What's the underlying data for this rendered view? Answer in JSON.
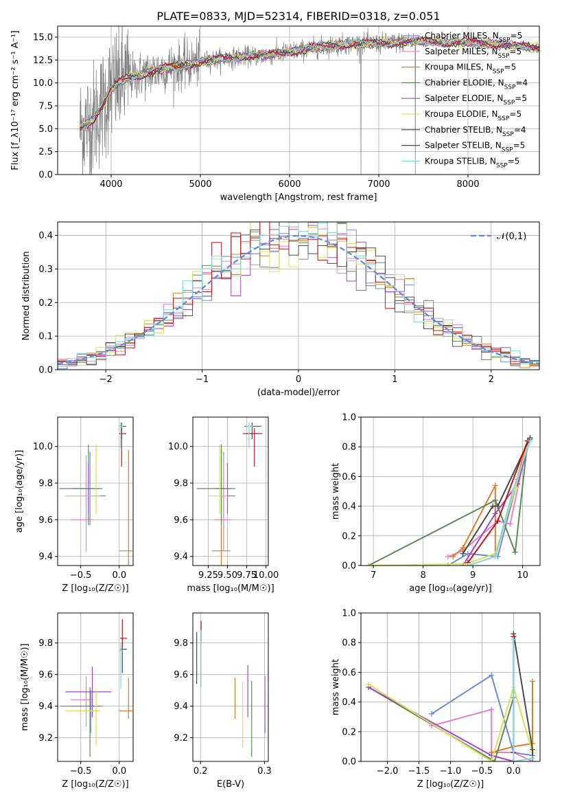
{
  "figure_title": "PLATE=0833, MJD=52314, FIBERID=0318, z=0.051",
  "colors": {
    "data": "#808080",
    "models": [
      "#6a8bdc",
      "#e87fc5",
      "#e07b28",
      "#5a8a5a",
      "#a844c2",
      "#d8e05a",
      "#4a4a4a",
      "#c0131a",
      "#7fd8e0"
    ],
    "gauss": "#6a8bdc"
  },
  "chart_data": [
    {
      "id": "spectrum",
      "type": "line",
      "xlabel": "wavelength [Angstrom, rest frame]",
      "ylabel": "Flux [f_λ10⁻¹⁷ erg cm⁻² s⁻¹ A⁻¹]",
      "xlim": [
        3400,
        8800
      ],
      "ylim": [
        0,
        16.2
      ],
      "xticks": [
        4000,
        5000,
        6000,
        7000,
        8000
      ],
      "yticks": [
        0.0,
        2.5,
        5.0,
        7.5,
        10.0,
        12.5,
        15.0
      ],
      "grid": true,
      "legend_placement": "right",
      "series": [
        {
          "name": "Chabrier MILES, N_SSP=5"
        },
        {
          "name": "Salpeter MILES, N_SSP=5"
        },
        {
          "name": "Kroupa MILES, N_SSP=5"
        },
        {
          "name": "Chabrier ELODIE, N_SSP=4"
        },
        {
          "name": "Salpeter ELODIE, N_SSP=5"
        },
        {
          "name": "Kroupa ELODIE, N_SSP=5"
        },
        {
          "name": "Chabrier STELIB, N_SSP=4"
        },
        {
          "name": "Salpeter STELIB, N_SSP=5"
        },
        {
          "name": "Kroupa STELIB, N_SSP=5"
        }
      ],
      "continuum": {
        "x": [
          3650,
          3800,
          3900,
          4000,
          4100,
          4200,
          4400,
          4600,
          4800,
          5000,
          5200,
          5500,
          5800,
          6000,
          6200,
          6400,
          6600,
          6800,
          7000,
          7200,
          7400,
          7600,
          7800,
          8000,
          8200,
          8400,
          8600,
          8800
        ],
        "y": [
          5.0,
          6.0,
          7.5,
          9.3,
          10.2,
          10.6,
          11.0,
          11.6,
          11.9,
          12.3,
          12.6,
          12.9,
          13.1,
          13.4,
          13.7,
          14.0,
          14.2,
          14.3,
          14.3,
          14.4,
          14.5,
          14.5,
          14.4,
          14.4,
          14.3,
          14.2,
          14.0,
          13.8
        ]
      }
    },
    {
      "id": "residuals",
      "type": "line",
      "xlabel": "(data-model)/error",
      "ylabel": "Normed distribution",
      "xlim": [
        -2.5,
        2.5
      ],
      "ylim": [
        0,
        0.44
      ],
      "xticks": [
        -2,
        -1,
        0,
        1,
        2
      ],
      "yticks": [
        0.0,
        0.1,
        0.2,
        0.3,
        0.4
      ],
      "grid": true,
      "legend_placement": "top-right",
      "legend": "𝒩(0,1)",
      "hist_bins": 50,
      "gauss_sigma": 1.0
    },
    {
      "id": "age-vs-Z",
      "type": "scatter",
      "xlabel": "Z [log₁₀(Z/Z☉)]",
      "ylabel": "age  [log₁₀(age/yr)]",
      "xlim": [
        -0.8,
        0.18
      ],
      "ylim": [
        9.35,
        10.16
      ],
      "xticks": [
        -0.5,
        0.0
      ],
      "yticks": [
        9.4,
        9.6,
        9.8,
        10.0
      ],
      "grid": true,
      "points": [
        {
          "x": -0.38,
          "y": 9.77,
          "xerr": [
            0.22,
            0.12
          ],
          "yerr": [
            0.2,
            0.2
          ],
          "c": 0
        },
        {
          "x": -0.43,
          "y": 9.6,
          "xerr": [
            0.2,
            0.08
          ],
          "yerr": [
            0.17,
            0.35
          ],
          "c": 1
        },
        {
          "x": 0.12,
          "y": 9.43,
          "xerr": [
            0.12,
            0.05
          ],
          "yerr": [
            0.1,
            0.55
          ],
          "c": 2
        },
        {
          "x": -0.4,
          "y": 9.77,
          "xerr": [
            0.38,
            0.18
          ],
          "yerr": [
            0.2,
            0.24
          ],
          "c": 3
        },
        {
          "x": -0.4,
          "y": 9.73,
          "xerr": [
            0.3,
            0.22
          ],
          "yerr": [
            0.1,
            0.18
          ],
          "c": 4
        },
        {
          "x": -0.3,
          "y": 9.73,
          "xerr": [
            0.4,
            0.05
          ],
          "yerr": [
            0.1,
            0.28
          ],
          "c": 5
        },
        {
          "x": 0.03,
          "y": 10.11,
          "xerr": [
            0.03,
            0.06
          ],
          "yerr": [
            0.07,
            0.02
          ],
          "c": 6
        },
        {
          "x": 0.03,
          "y": 10.07,
          "xerr": [
            0.03,
            0.06
          ],
          "yerr": [
            0.18,
            0.03
          ],
          "c": 7
        },
        {
          "x": 0.02,
          "y": 10.11,
          "xerr": [
            0.02,
            0.03
          ],
          "yerr": [
            0.12,
            0.02
          ],
          "c": 8
        }
      ]
    },
    {
      "id": "age-vs-mass",
      "type": "scatter",
      "xlabel": "mass [log₁₀(M/M☉)]",
      "ylabel": "",
      "xlim": [
        9.05,
        10.03
      ],
      "ylim": [
        9.35,
        10.16
      ],
      "xticks": [
        9.25,
        9.5,
        9.75,
        10.0
      ],
      "xticklabels": [
        "9.25",
        "9.50",
        "9.75",
        "10.00"
      ],
      "yticks": [
        9.4,
        9.6,
        9.8,
        10.0
      ],
      "grid": true,
      "points": [
        {
          "x": 9.45,
          "y": 9.77,
          "xerr": [
            0.1,
            0.1
          ],
          "yerr": [
            0.2,
            0.2
          ],
          "c": 0
        },
        {
          "x": 9.45,
          "y": 9.6,
          "xerr": [
            0.12,
            0.1
          ],
          "yerr": [
            0.17,
            0.35
          ],
          "c": 1
        },
        {
          "x": 9.42,
          "y": 9.43,
          "xerr": [
            0.12,
            0.12
          ],
          "yerr": [
            0.1,
            0.55
          ],
          "c": 2
        },
        {
          "x": 9.42,
          "y": 9.77,
          "xerr": [
            0.32,
            0.18
          ],
          "yerr": [
            0.2,
            0.24
          ],
          "c": 3
        },
        {
          "x": 9.5,
          "y": 9.73,
          "xerr": [
            0.1,
            0.1
          ],
          "yerr": [
            0.1,
            0.18
          ],
          "c": 4
        },
        {
          "x": 9.4,
          "y": 9.73,
          "xerr": [
            0.14,
            0.1
          ],
          "yerr": [
            0.1,
            0.28
          ],
          "c": 5
        },
        {
          "x": 9.82,
          "y": 10.11,
          "xerr": [
            0.1,
            0.12
          ],
          "yerr": [
            0.07,
            0.02
          ],
          "c": 6
        },
        {
          "x": 9.85,
          "y": 10.07,
          "xerr": [
            0.15,
            0.1
          ],
          "yerr": [
            0.18,
            0.03
          ],
          "c": 7
        },
        {
          "x": 9.78,
          "y": 10.11,
          "xerr": [
            0.04,
            0.05
          ],
          "yerr": [
            0.12,
            0.02
          ],
          "c": 8
        }
      ]
    },
    {
      "id": "weight-vs-age",
      "type": "line",
      "xlabel": "age  [log₁₀(age/yr)]",
      "ylabel": "mass weight",
      "xlim": [
        6.75,
        10.35
      ],
      "ylim": [
        0,
        1.0
      ],
      "xticks": [
        7,
        8,
        9,
        10
      ],
      "yticks": [
        0.0,
        0.2,
        0.4,
        0.6,
        0.8,
        1.0
      ],
      "grid": true,
      "series": [
        {
          "c": 0,
          "x": [
            8.5,
            8.9,
            9.5,
            9.9,
            10.15
          ],
          "y": [
            0.0,
            0.08,
            0.06,
            0.58,
            0.86
          ]
        },
        {
          "c": 1,
          "x": [
            8.5,
            8.8,
            9.5,
            9.75,
            10.1
          ],
          "y": [
            0.06,
            0.1,
            0.3,
            0.28,
            0.84
          ]
        },
        {
          "c": 2,
          "x": [
            8.6,
            8.8,
            9.45,
            9.45,
            10.1
          ],
          "y": [
            0.06,
            0.12,
            0.54,
            0.06,
            0.84
          ]
        },
        {
          "c": 3,
          "x": [
            6.9,
            9.45,
            9.85,
            10.1
          ],
          "y": [
            0.0,
            0.44,
            0.09,
            0.84
          ]
        },
        {
          "c": 4,
          "x": [
            8.8,
            9.45,
            9.9,
            10.15
          ],
          "y": [
            0.0,
            0.35,
            0.55,
            0.85
          ]
        },
        {
          "c": 5,
          "x": [
            6.9,
            8.85,
            9.45,
            9.85,
            10.12
          ],
          "y": [
            0.0,
            0.01,
            0.08,
            0.52,
            0.84
          ]
        },
        {
          "c": 6,
          "x": [
            8.8,
            9.4,
            9.5,
            10.15
          ],
          "y": [
            0.08,
            0.4,
            0.4,
            0.86
          ]
        },
        {
          "c": 7,
          "x": [
            8.9,
            9.5,
            10.1
          ],
          "y": [
            0.02,
            0.3,
            0.84
          ]
        },
        {
          "c": 8,
          "x": [
            8.9,
            9.45,
            9.8,
            10.15
          ],
          "y": [
            0.0,
            0.06,
            0.5,
            0.84
          ]
        }
      ]
    },
    {
      "id": "mass-vs-Z",
      "type": "scatter",
      "xlabel": "Z [log₁₀(Z/Z☉)]",
      "ylabel": "mass [log₁₀(M/M☉)]",
      "xlim": [
        -0.8,
        0.18
      ],
      "ylim": [
        9.05,
        9.99
      ],
      "xticks": [
        -0.5,
        0.0
      ],
      "yticks": [
        9.2,
        9.4,
        9.6,
        9.8
      ],
      "grid": true,
      "points": [
        {
          "x": -0.37,
          "y": 9.4,
          "xerr": [
            0.22,
            0.12
          ],
          "yerr": [
            0.17,
            0.1
          ],
          "c": 0
        },
        {
          "x": -0.43,
          "y": 9.44,
          "xerr": [
            0.2,
            0.08
          ],
          "yerr": [
            0.17,
            0.15
          ],
          "c": 1
        },
        {
          "x": 0.12,
          "y": 9.37,
          "xerr": [
            0.12,
            0.05
          ],
          "yerr": [
            0.05,
            0.21
          ],
          "c": 2
        },
        {
          "x": -0.38,
          "y": 9.4,
          "xerr": [
            0.38,
            0.16
          ],
          "yerr": [
            0.32,
            0.12
          ],
          "c": 3
        },
        {
          "x": -0.35,
          "y": 9.49,
          "xerr": [
            0.35,
            0.25
          ],
          "yerr": [
            0.16,
            0.16
          ],
          "c": 4
        },
        {
          "x": -0.3,
          "y": 9.37,
          "xerr": [
            0.4,
            0.05
          ],
          "yerr": [
            0.22,
            0.14
          ],
          "c": 5
        },
        {
          "x": 0.04,
          "y": 9.76,
          "xerr": [
            0.03,
            0.06
          ],
          "yerr": [
            0.15,
            0.07
          ],
          "c": 6
        },
        {
          "x": 0.04,
          "y": 9.83,
          "xerr": [
            0.03,
            0.06
          ],
          "yerr": [
            0.06,
            0.12
          ],
          "c": 7
        },
        {
          "x": 0.02,
          "y": 9.75,
          "xerr": [
            0.02,
            0.03
          ],
          "yerr": [
            0.24,
            0.05
          ],
          "c": 8
        }
      ]
    },
    {
      "id": "mass-vs-EBV",
      "type": "scatter",
      "xlabel": "E(B-V)",
      "ylabel": "",
      "xlim": [
        0.188,
        0.306
      ],
      "ylim": [
        9.05,
        9.99
      ],
      "xticks": [
        0.2,
        0.3
      ],
      "yticks": [
        9.2,
        9.4,
        9.6,
        9.8
      ],
      "grid": true,
      "points": [
        {
          "x": 0.301,
          "y": 9.4,
          "yerr": [
            0.17,
            0.1
          ],
          "c": 0
        },
        {
          "x": 0.301,
          "y": 9.44,
          "yerr": [
            0.17,
            0.15
          ],
          "c": 1
        },
        {
          "x": 0.254,
          "y": 9.45,
          "yerr": [
            0.13,
            0.13
          ],
          "c": 2
        },
        {
          "x": 0.28,
          "y": 9.4,
          "yerr": [
            0.32,
            0.16
          ],
          "c": 3
        },
        {
          "x": 0.274,
          "y": 9.49,
          "yerr": [
            0.16,
            0.17
          ],
          "c": 4
        },
        {
          "x": 0.266,
          "y": 9.35,
          "yerr": [
            0.21,
            0.21
          ],
          "c": 5
        },
        {
          "x": 0.194,
          "y": 9.7,
          "yerr": [
            0.16,
            0.17
          ],
          "c": 6
        },
        {
          "x": 0.201,
          "y": 9.87,
          "yerr": [
            0.06,
            0.07
          ],
          "c": 7
        },
        {
          "x": 0.201,
          "y": 9.7,
          "yerr": [
            0.18,
            0.18
          ],
          "c": 8
        }
      ]
    },
    {
      "id": "weight-vs-Z",
      "type": "line",
      "xlabel": "Z [log₁₀(Z/Z☉)]",
      "ylabel": "mass weight",
      "xlim": [
        -2.42,
        0.42
      ],
      "ylim": [
        0,
        1.0
      ],
      "xticks": [
        -2.0,
        -1.5,
        -1.0,
        -0.5,
        0.0
      ],
      "yticks": [
        0.0,
        0.2,
        0.4,
        0.6,
        0.8,
        1.0
      ],
      "grid": true,
      "series": [
        {
          "c": 0,
          "x": [
            -1.3,
            -0.35,
            0.0,
            0.3
          ],
          "y": [
            0.32,
            0.58,
            0.06,
            0.04
          ]
        },
        {
          "c": 1,
          "x": [
            -1.3,
            -0.35,
            -0.35,
            0.0,
            0.3
          ],
          "y": [
            0.24,
            0.35,
            0.06,
            0.06,
            0.0
          ]
        },
        {
          "c": 2,
          "x": [
            -0.35,
            0.0,
            0.3,
            0.3
          ],
          "y": [
            0.06,
            0.1,
            0.12,
            0.54
          ]
        },
        {
          "c": 3,
          "x": [
            -2.3,
            -0.3,
            0.0,
            0.0
          ],
          "y": [
            0.5,
            0.0,
            0.43,
            0.84
          ]
        },
        {
          "c": 4,
          "x": [
            -2.3,
            -0.35,
            0.0
          ],
          "y": [
            0.5,
            0.04,
            0.0
          ]
        },
        {
          "c": 5,
          "x": [
            -2.3,
            -0.35,
            0.0,
            0.3
          ],
          "y": [
            0.52,
            0.0,
            0.5,
            0.06
          ]
        },
        {
          "c": 6,
          "x": [
            0.0,
            0.3,
            0.3
          ],
          "y": [
            0.86,
            0.08,
            0.0
          ]
        },
        {
          "c": 7,
          "x": [
            0.0,
            0.0
          ],
          "y": [
            0.84,
            0.06
          ]
        },
        {
          "c": 8,
          "x": [
            0.0,
            0.0,
            0.3
          ],
          "y": [
            0.82,
            0.0,
            0.02
          ]
        }
      ]
    }
  ]
}
